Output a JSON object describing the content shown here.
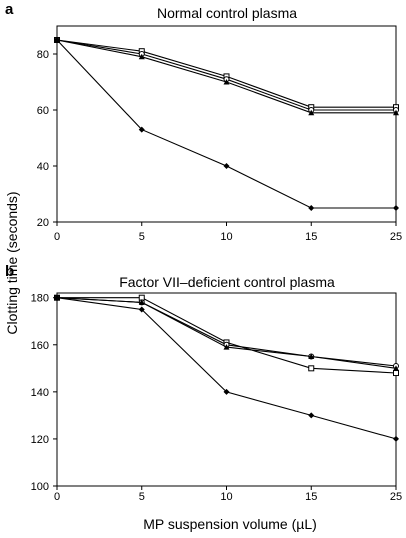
{
  "ylabel": "Clotting time (seconds)",
  "xlabel": "MP suspension volume (µL)",
  "chart_data": [
    {
      "type": "line",
      "panel": "a",
      "title": "Normal control plasma",
      "categories": [
        "0",
        "5",
        "10",
        "15",
        "25"
      ],
      "ylim": [
        20,
        90
      ],
      "yticks": [
        20,
        40,
        60,
        80
      ],
      "grid": false,
      "series": [
        {
          "marker": "square",
          "values": [
            85,
            81,
            72,
            61,
            61
          ]
        },
        {
          "marker": "circle",
          "values": [
            85,
            80,
            71,
            60,
            60
          ]
        },
        {
          "marker": "triangle",
          "values": [
            85,
            79,
            70,
            59,
            59
          ]
        },
        {
          "marker": "diamond",
          "values": [
            85,
            53,
            40,
            25,
            25
          ]
        }
      ]
    },
    {
      "type": "line",
      "panel": "b",
      "title": "Factor VII–deficient control plasma",
      "categories": [
        "0",
        "5",
        "10",
        "15",
        "25"
      ],
      "ylim": [
        100,
        182
      ],
      "yticks": [
        100,
        120,
        140,
        160,
        180
      ],
      "grid": false,
      "series": [
        {
          "marker": "square",
          "values": [
            180,
            180,
            161,
            150,
            148
          ]
        },
        {
          "marker": "circle",
          "values": [
            180,
            178,
            160,
            155,
            151
          ]
        },
        {
          "marker": "triangle",
          "values": [
            180,
            178,
            159,
            155,
            150
          ]
        },
        {
          "marker": "diamond",
          "values": [
            180,
            175,
            140,
            130,
            120
          ]
        }
      ]
    }
  ]
}
